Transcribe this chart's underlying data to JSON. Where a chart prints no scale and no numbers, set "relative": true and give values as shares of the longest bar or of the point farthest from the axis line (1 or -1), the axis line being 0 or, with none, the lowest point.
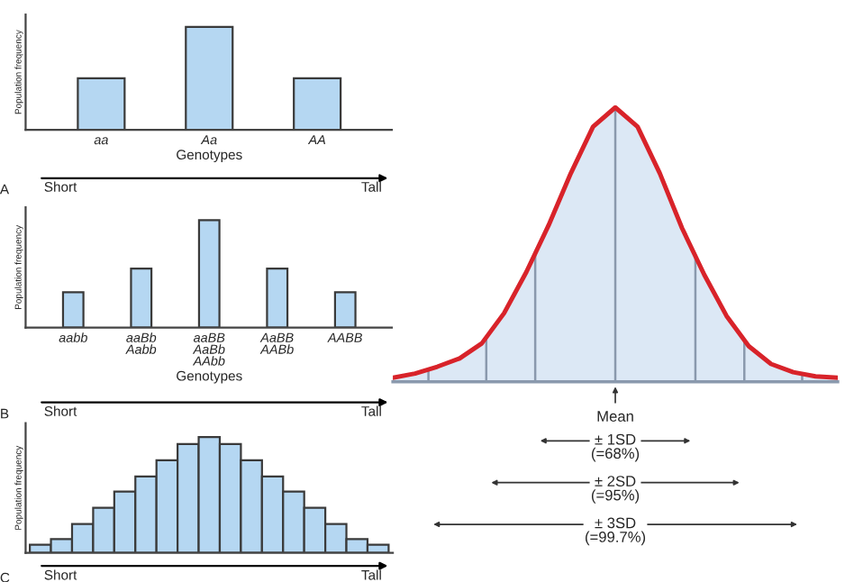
{
  "chart_data": [
    {
      "type": "bar",
      "categories": [
        "aa",
        "Aa",
        "AA"
      ],
      "values": [
        0.5,
        1,
        0.5
      ],
      "relative": true,
      "color": "#b5d7f2",
      "xlabel": "Genotypes",
      "ylabel": "Population frequency",
      "tick_labels": "x",
      "annotations": [
        "A",
        "Short",
        "Tall"
      ]
    },
    {
      "type": "bar",
      "categories": [
        "aabb",
        "aaBb\nAabb",
        "aaBB\nAaBb\nAAbb",
        "AaBB\nAABb",
        "AABB"
      ],
      "values": [
        0.33,
        0.55,
        1,
        0.55,
        0.33
      ],
      "relative": true,
      "color": "#b5d7f2",
      "xlabel": "Genotypes",
      "ylabel": "Population frequency",
      "tick_labels": "x",
      "annotations": [
        "B",
        "Short",
        "Tall"
      ]
    },
    {
      "type": "bar",
      "categories": [
        null,
        null,
        null,
        null,
        null,
        null,
        null,
        null,
        null,
        null,
        null,
        null,
        null,
        null,
        null,
        null,
        null
      ],
      "values": [
        0.07,
        0.12,
        0.25,
        0.39,
        0.53,
        0.66,
        0.8,
        0.94,
        1,
        0.94,
        0.8,
        0.66,
        0.53,
        0.39,
        0.25,
        0.12,
        0.07
      ],
      "relative": true,
      "color": "#b5d7f2",
      "ylabel": "Population frequency",
      "tick_labels": false,
      "annotations": [
        "C",
        "Short",
        "Tall"
      ]
    },
    {
      "type": "area",
      "relative": true,
      "categories": [
        null,
        null,
        null,
        null,
        null,
        null,
        null,
        null,
        null,
        null,
        null,
        null,
        null,
        null,
        null,
        null,
        null,
        null,
        null,
        null,
        null
      ],
      "tick_labels": false,
      "series": [
        {
          "color": "#d8232a",
          "values": [
            0.015,
            0.03,
            0.055,
            0.085,
            0.14,
            0.25,
            0.4,
            0.57,
            0.76,
            0.93,
            1,
            0.93,
            0.76,
            0.56,
            0.39,
            0.24,
            0.13,
            0.065,
            0.035,
            0.02,
            0.015
          ]
        }
      ],
      "annotations": [
        "Mean",
        "± 1SD\n(=68%)",
        "± 2SD\n(=95%)",
        "± 3SD\n(=99.7%)"
      ]
    }
  ]
}
